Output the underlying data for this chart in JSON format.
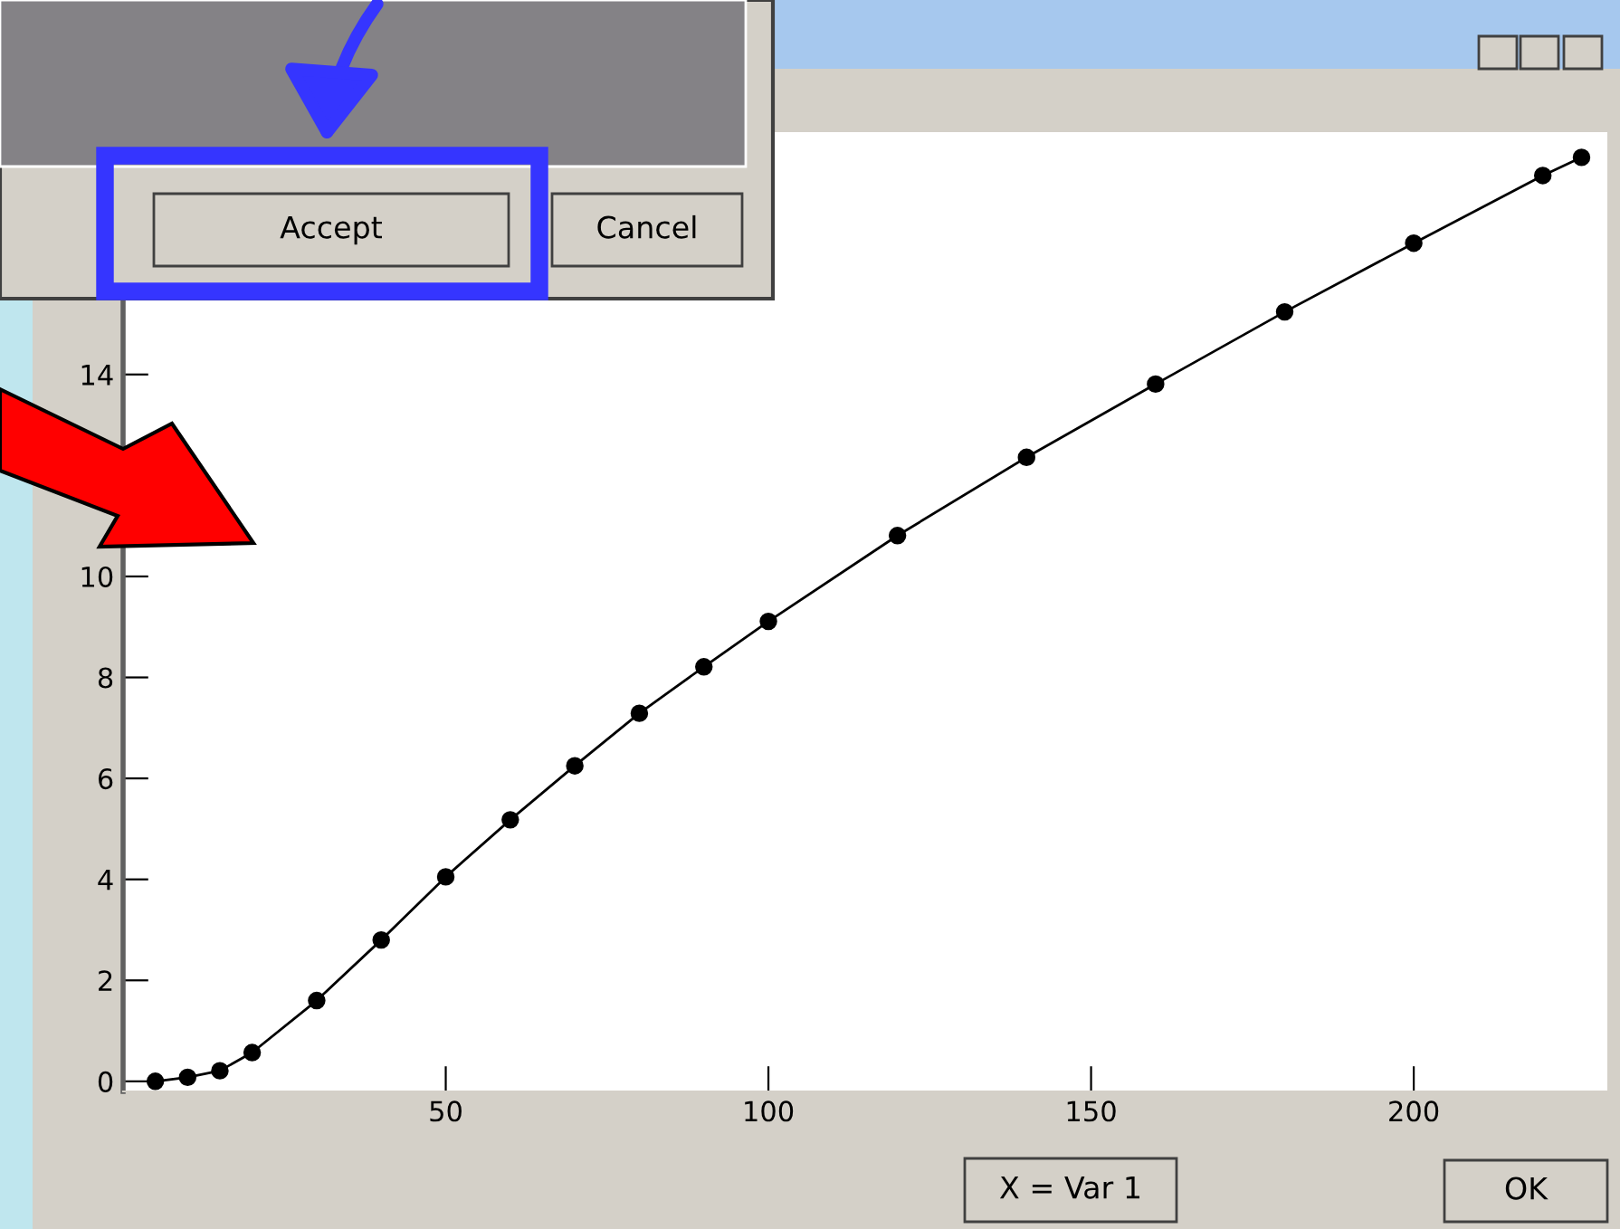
{
  "chart_data": {
    "type": "line",
    "x": [
      5,
      10,
      15,
      20,
      30,
      40,
      50,
      60,
      70,
      80,
      90,
      100,
      120,
      140,
      160,
      180,
      200,
      220,
      226
    ],
    "series": [
      {
        "color": "#000000",
        "values": [
          0,
          0.08,
          0.21,
          0.57,
          1.6,
          2.8,
          4.05,
          5.18,
          6.25,
          7.29,
          8.21,
          9.11,
          10.81,
          12.36,
          13.81,
          15.24,
          16.6,
          17.94,
          18.3
        ]
      }
    ],
    "xlim": [
      0,
      230
    ],
    "ylim": [
      -0.2,
      18.8
    ],
    "xticks": [
      50,
      100,
      150,
      200
    ],
    "yticks": [
      0,
      2,
      4,
      6,
      8,
      10,
      {
        "value": 12,
        "label": null
      },
      14
    ],
    "marker": "circle",
    "line_style": "solid",
    "grid": false,
    "legend": false,
    "annotations": [
      "Accept",
      "Cancel",
      "X = Var 1",
      "OK"
    ]
  }
}
